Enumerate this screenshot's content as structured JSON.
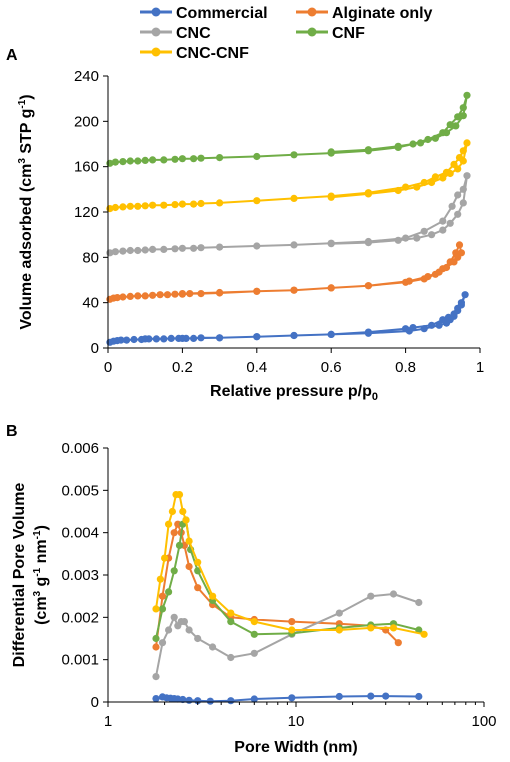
{
  "legend": {
    "entries": [
      {
        "name": "Commercial",
        "color": "#4472C4"
      },
      {
        "name": "Alginate only",
        "color": "#ED7D31"
      },
      {
        "name": "CNC",
        "color": "#A5A5A5"
      },
      {
        "name": "CNF",
        "color": "#70AD47"
      },
      {
        "name": "CNC-CNF",
        "color": "#FFC000"
      }
    ]
  },
  "chart_data": [
    {
      "panel_label": "A",
      "type": "line",
      "xlabel": "Relative pressure p/p",
      "xlabel_sub": "0",
      "ylabel": "Volume adsorbed (cm",
      "ylabel_sup": "3",
      "ylabel_mid": " STP g",
      "ylabel_sup2": "-1",
      "ylabel_end": ")",
      "xlim": [
        0,
        1
      ],
      "ylim": [
        0,
        240
      ],
      "xticks": [
        "0",
        "0.2",
        "0.4",
        "0.6",
        "0.8",
        "1"
      ],
      "yticks": [
        "0",
        "40",
        "80",
        "120",
        "160",
        "200",
        "240"
      ],
      "grid": false,
      "series": [
        {
          "name": "Commercial",
          "color": "#4472C4",
          "x": [
            0.005,
            0.015,
            0.025,
            0.035,
            0.05,
            0.07,
            0.09,
            0.11,
            0.13,
            0.15,
            0.17,
            0.19,
            0.21,
            0.23,
            0.25,
            0.3,
            0.4,
            0.5,
            0.6,
            0.7,
            0.8,
            0.82,
            0.87,
            0.9,
            0.915,
            0.93,
            0.94,
            0.95,
            0.96,
            0.95,
            0.94,
            0.93,
            0.92,
            0.91,
            0.89,
            0.85,
            0.81,
            0.7,
            0.6,
            0.5,
            0.4,
            0.3,
            0.2,
            0.1
          ],
          "y": [
            5,
            6,
            6.5,
            7,
            7,
            7.5,
            7.5,
            8,
            8,
            8,
            8.5,
            8.5,
            8.5,
            8.5,
            9,
            9,
            10,
            11,
            12,
            14,
            17,
            18,
            20,
            25,
            27,
            30,
            35,
            40,
            47,
            38,
            33,
            28,
            25,
            22,
            20,
            17,
            15,
            13,
            12,
            11,
            10,
            9,
            8.5,
            8
          ]
        },
        {
          "name": "Alginate only",
          "color": "#ED7D31",
          "x": [
            0.005,
            0.015,
            0.025,
            0.04,
            0.06,
            0.08,
            0.1,
            0.12,
            0.14,
            0.16,
            0.18,
            0.2,
            0.22,
            0.25,
            0.3,
            0.4,
            0.5,
            0.6,
            0.7,
            0.8,
            0.85,
            0.88,
            0.9,
            0.92,
            0.935,
            0.945,
            0.95,
            0.94,
            0.93,
            0.91,
            0.89,
            0.86,
            0.81,
            0.7,
            0.6,
            0.5,
            0.4,
            0.3,
            0.2
          ],
          "y": [
            43,
            44,
            44.5,
            45,
            45.5,
            46,
            46,
            46.5,
            47,
            47,
            47.5,
            47.5,
            48,
            48,
            48.5,
            50,
            51,
            53,
            55,
            58,
            61,
            65,
            70,
            76,
            84,
            91,
            84,
            80,
            76,
            71,
            67,
            63,
            59,
            55,
            53,
            51,
            50,
            49,
            48
          ]
        },
        {
          "name": "CNC",
          "color": "#A5A5A5",
          "x": [
            0.005,
            0.02,
            0.04,
            0.06,
            0.08,
            0.1,
            0.12,
            0.15,
            0.18,
            0.2,
            0.23,
            0.25,
            0.3,
            0.4,
            0.5,
            0.6,
            0.7,
            0.8,
            0.85,
            0.9,
            0.925,
            0.94,
            0.955,
            0.965,
            0.955,
            0.94,
            0.92,
            0.9,
            0.87,
            0.83,
            0.78,
            0.7,
            0.6
          ],
          "y": [
            84,
            85,
            85.5,
            86,
            86,
            86.5,
            87,
            87,
            87.5,
            88,
            88,
            88.5,
            89,
            90,
            91,
            92.5,
            94,
            97,
            103,
            112,
            125,
            135,
            140,
            152,
            128,
            118,
            110,
            104,
            100,
            97,
            95,
            93,
            92
          ]
        },
        {
          "name": "CNF",
          "color": "#70AD47",
          "x": [
            0.005,
            0.02,
            0.04,
            0.06,
            0.08,
            0.1,
            0.12,
            0.15,
            0.18,
            0.2,
            0.23,
            0.25,
            0.3,
            0.4,
            0.5,
            0.6,
            0.7,
            0.78,
            0.82,
            0.86,
            0.9,
            0.92,
            0.94,
            0.955,
            0.965,
            0.955,
            0.935,
            0.91,
            0.88,
            0.84,
            0.78,
            0.7,
            0.6
          ],
          "y": [
            163,
            164,
            164.5,
            165,
            165,
            165.5,
            166,
            166,
            166.5,
            167,
            167,
            167.5,
            168,
            169,
            170.5,
            172,
            174,
            177,
            180,
            184,
            190,
            197,
            204,
            212,
            223,
            205,
            196,
            190,
            185,
            181,
            178,
            175,
            173
          ]
        },
        {
          "name": "CNC-CNF",
          "color": "#FFC000",
          "x": [
            0.005,
            0.02,
            0.04,
            0.06,
            0.08,
            0.1,
            0.12,
            0.15,
            0.18,
            0.2,
            0.23,
            0.25,
            0.3,
            0.4,
            0.5,
            0.6,
            0.7,
            0.8,
            0.85,
            0.88,
            0.91,
            0.93,
            0.945,
            0.955,
            0.965,
            0.955,
            0.94,
            0.92,
            0.9,
            0.87,
            0.83,
            0.78,
            0.7,
            0.6
          ],
          "y": [
            123,
            124,
            124.5,
            125,
            125,
            125.5,
            126,
            126,
            126.5,
            127,
            127,
            127.5,
            128,
            130,
            132,
            134,
            137,
            142,
            146,
            151,
            155,
            162,
            168,
            174,
            181,
            165,
            158,
            154,
            150,
            146,
            142,
            139,
            136,
            133
          ]
        }
      ]
    },
    {
      "panel_label": "B",
      "type": "line",
      "xscale": "log",
      "xlabel": "Pore Width (nm)",
      "ylabel": "Differential Pore Volume",
      "ylabel2": "(cm",
      "ylabel2_sup": "3",
      "ylabel2_mid": " g",
      "ylabel2_sup2": "-1",
      "ylabel2_mid2": " nm",
      "ylabel2_sup3": "-1",
      "ylabel2_end": ")",
      "xlim": [
        1,
        100
      ],
      "ylim": [
        0,
        0.006
      ],
      "xticks": [
        "1",
        "10",
        "100"
      ],
      "yticks": [
        "0",
        "0.001",
        "0.002",
        "0.003",
        "0.004",
        "0.005",
        "0.006"
      ],
      "grid": false,
      "series": [
        {
          "name": "Commercial",
          "color": "#4472C4",
          "x": [
            1.8,
            1.95,
            2.05,
            2.15,
            2.25,
            2.35,
            2.5,
            2.7,
            3.0,
            3.5,
            4.5,
            6,
            9.5,
            17,
            25,
            30,
            45
          ],
          "y": [
            8e-05,
            0.00012,
            0.0001,
            9e-05,
            8e-05,
            7e-05,
            6e-05,
            4e-05,
            3e-05,
            2e-05,
            3e-05,
            7e-05,
            0.0001,
            0.00013,
            0.00014,
            0.00014,
            0.00013
          ]
        },
        {
          "name": "Alginate only",
          "color": "#ED7D31",
          "x": [
            1.8,
            1.95,
            2.1,
            2.25,
            2.35,
            2.45,
            2.55,
            2.7,
            3.0,
            3.6,
            4.5,
            6,
            9.5,
            17,
            25,
            30,
            35
          ],
          "y": [
            0.0013,
            0.0025,
            0.0034,
            0.004,
            0.0042,
            0.004,
            0.0037,
            0.0032,
            0.0027,
            0.0023,
            0.002,
            0.00195,
            0.0019,
            0.00185,
            0.0018,
            0.0017,
            0.0014
          ]
        },
        {
          "name": "CNC",
          "color": "#A5A5A5",
          "x": [
            1.8,
            1.95,
            2.1,
            2.25,
            2.35,
            2.45,
            2.55,
            2.7,
            3.0,
            3.6,
            4.5,
            6,
            9.5,
            17,
            25,
            33,
            45
          ],
          "y": [
            0.0006,
            0.0014,
            0.0017,
            0.002,
            0.0018,
            0.0019,
            0.0019,
            0.0017,
            0.0015,
            0.0013,
            0.00105,
            0.00115,
            0.0016,
            0.0021,
            0.0025,
            0.00255,
            0.00235
          ]
        },
        {
          "name": "CNF",
          "color": "#70AD47",
          "x": [
            1.8,
            1.95,
            2.1,
            2.25,
            2.4,
            2.5,
            2.6,
            2.75,
            3.0,
            3.6,
            4.5,
            6,
            9.5,
            17,
            25,
            33,
            45
          ],
          "y": [
            0.0015,
            0.0022,
            0.0026,
            0.0031,
            0.0037,
            0.0042,
            0.0043,
            0.0036,
            0.0031,
            0.0024,
            0.0019,
            0.0016,
            0.00162,
            0.00175,
            0.00182,
            0.00185,
            0.0017
          ]
        },
        {
          "name": "CNC-CNF",
          "color": "#FFC000",
          "x": [
            1.8,
            1.9,
            2.0,
            2.1,
            2.2,
            2.3,
            2.4,
            2.5,
            2.6,
            2.7,
            3.0,
            3.6,
            4.5,
            6,
            9.5,
            17,
            25,
            33,
            48
          ],
          "y": [
            0.0022,
            0.0029,
            0.0034,
            0.0042,
            0.0045,
            0.0049,
            0.0049,
            0.0045,
            0.0043,
            0.0038,
            0.0033,
            0.0025,
            0.0021,
            0.0019,
            0.0017,
            0.0017,
            0.00175,
            0.00175,
            0.0016
          ]
        }
      ]
    }
  ]
}
